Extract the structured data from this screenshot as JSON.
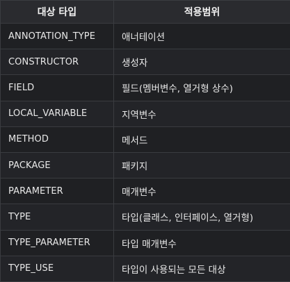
{
  "table": {
    "headers": [
      "대상 타입",
      "적용범위"
    ],
    "rows": [
      {
        "target": "ANNOTATION_TYPE",
        "scope": "애너테이션"
      },
      {
        "target": "CONSTRUCTOR",
        "scope": "생성자"
      },
      {
        "target": "FIELD",
        "scope": "필드(멤버변수, 열거형 상수)"
      },
      {
        "target": "LOCAL_VARIABLE",
        "scope": "지역변수"
      },
      {
        "target": "METHOD",
        "scope": "메서드"
      },
      {
        "target": "PACKAGE",
        "scope": "패키지"
      },
      {
        "target": "PARAMETER",
        "scope": "매개변수"
      },
      {
        "target": "TYPE",
        "scope": "타입(클래스, 인터페이스, 열거형)"
      },
      {
        "target": "TYPE_PARAMETER",
        "scope": "타입 매개변수"
      },
      {
        "target": "TYPE_USE",
        "scope": "타입이 사용되는 모든 대상"
      }
    ]
  }
}
